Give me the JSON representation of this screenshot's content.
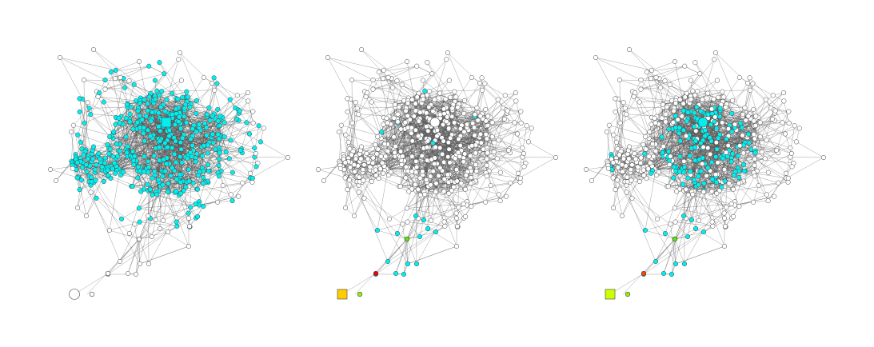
{
  "figure": {
    "panel_count": 3,
    "colors": {
      "edge": "#555555",
      "node_default": "#ffffff",
      "node_stroke": "#444444",
      "highlight": "#00f0f0",
      "green": "#55ee00",
      "red": "#ee0000",
      "lime": "#99ee00",
      "yellow": "#ffcc00",
      "yellow_green": "#ccff00"
    },
    "panels": [
      {
        "name": "panel-1",
        "core_fill": "highlight",
        "tail_fill": "node_default",
        "hub_shape": "square",
        "hub_fill": "highlight",
        "source_shape": "large-circle",
        "source_fill": "node_default"
      },
      {
        "name": "panel-2",
        "core_fill": "node_default",
        "tail_fill": "highlight",
        "hub_shape": "large-circle",
        "hub_fill": "node_default",
        "source_shape": "square",
        "source_fill": "yellow"
      },
      {
        "name": "panel-3",
        "core_fill": "mixed",
        "tail_fill": "highlight",
        "hub_shape": "large-circle",
        "hub_fill": "highlight",
        "source_shape": "square",
        "source_fill": "yellow_green"
      }
    ]
  }
}
